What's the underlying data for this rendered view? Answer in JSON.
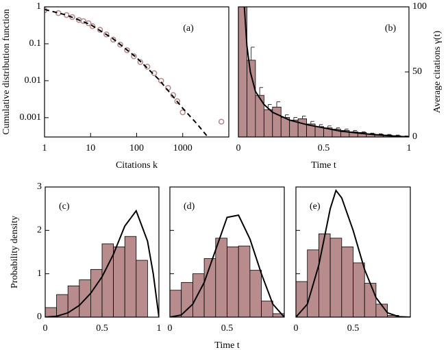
{
  "chart_data": [
    {
      "type": "scatter",
      "label": "(a)",
      "xlabel": "Citations k",
      "ylabel": "Cumulative distribution function",
      "log": true,
      "xlim": [
        1,
        10000
      ],
      "ylim": [
        0.0003,
        1
      ],
      "xticks": [
        1,
        10,
        100,
        1000
      ],
      "yticks": [
        0.001,
        0.01,
        0.1,
        1
      ],
      "series": [
        {
          "type": "scatter",
          "color": "#b88c8c",
          "x": [
            1,
            2,
            3,
            4,
            5.6,
            7,
            9,
            11,
            16,
            22,
            31,
            44,
            62,
            87,
            120,
            170,
            240,
            340,
            480,
            620,
            760,
            1000,
            6900
          ],
          "values": [
            0.81,
            0.68,
            0.6,
            0.53,
            0.44,
            0.41,
            0.36,
            0.3,
            0.24,
            0.18,
            0.13,
            0.095,
            0.067,
            0.046,
            0.032,
            0.024,
            0.016,
            0.01,
            0.0064,
            0.0041,
            0.0028,
            0.0014,
            0.00078
          ]
        },
        {
          "type": "line",
          "dash": true,
          "color": "#000000",
          "x": [
            1,
            3,
            10,
            30,
            100,
            300,
            1000,
            2000,
            3500
          ],
          "values": [
            0.85,
            0.6,
            0.33,
            0.14,
            0.042,
            0.011,
            0.0018,
            0.0007,
            0.0003
          ]
        }
      ]
    },
    {
      "type": "histogram",
      "label": "(b)",
      "xlabel": "Time t",
      "ylabel": "Average citations γ(t)",
      "yaxis": "right",
      "xlim": [
        0,
        1
      ],
      "ylim": [
        0,
        100
      ],
      "xticks": [
        0,
        0.5,
        1
      ],
      "yticks": [
        0,
        50,
        100
      ],
      "color": "#b88c8c",
      "bins": [
        0,
        0.05,
        0.1,
        0.15,
        0.2,
        0.25,
        0.3,
        0.35,
        0.4,
        0.45,
        0.5,
        0.55,
        0.6,
        0.65,
        0.7,
        0.75,
        0.8,
        0.85,
        0.9,
        0.95,
        1
      ],
      "values": [
        120,
        59,
        32,
        21,
        23,
        15,
        13,
        14,
        10,
        8,
        7,
        6,
        5,
        4,
        3.5,
        2.5,
        2,
        1.5,
        1,
        0.5
      ],
      "errors": [
        null,
        10,
        6,
        4,
        4,
        2,
        2,
        2,
        2,
        1.5,
        1.5,
        1,
        1,
        1,
        0.5,
        0.5,
        0.5,
        0.5,
        0.5,
        0.3
      ],
      "curve": {
        "color": "#000000",
        "x": [
          0.035,
          0.05,
          0.07,
          0.1,
          0.15,
          0.2,
          0.3,
          0.4,
          0.5,
          0.6,
          0.7,
          0.8,
          0.9,
          1
        ],
        "values": [
          100,
          70,
          50,
          35,
          25,
          19,
          13,
          9.5,
          7,
          4.5,
          3,
          1.8,
          0.8,
          0
        ]
      }
    },
    {
      "type": "histogram",
      "label": "(c)",
      "ylabel": "Probability density",
      "xlim": [
        0,
        1
      ],
      "ylim": [
        0,
        3
      ],
      "xticks": [
        0,
        0.5,
        1
      ],
      "yticks": [
        0,
        1,
        2,
        3
      ],
      "color": "#b88c8c",
      "bins": [
        0,
        0.1,
        0.2,
        0.3,
        0.4,
        0.5,
        0.6,
        0.7,
        0.8,
        0.9,
        1
      ],
      "values": [
        0.22,
        0.52,
        0.72,
        0.86,
        1.1,
        1.69,
        1.62,
        1.86,
        1.31,
        0
      ],
      "curve": {
        "color": "#000000",
        "x": [
          0,
          0.1,
          0.2,
          0.3,
          0.4,
          0.5,
          0.6,
          0.7,
          0.8,
          0.9,
          0.95,
          1
        ],
        "values": [
          0,
          0.02,
          0.1,
          0.27,
          0.55,
          0.93,
          1.45,
          2.1,
          2.45,
          1.75,
          1,
          0
        ]
      }
    },
    {
      "type": "histogram",
      "label": "(d)",
      "xlabel": "Time t",
      "show_ytick_labels": false,
      "xlim": [
        0,
        1
      ],
      "ylim": [
        0,
        3
      ],
      "xticks": [
        0,
        0.5
      ],
      "yticks": [
        0,
        1,
        2,
        3
      ],
      "color": "#b88c8c",
      "bins": [
        0,
        0.1,
        0.2,
        0.3,
        0.4,
        0.5,
        0.6,
        0.7,
        0.8,
        0.9,
        1
      ],
      "values": [
        0.62,
        0.8,
        1.0,
        1.35,
        1.82,
        1.62,
        1.64,
        1.08,
        0.37,
        0.08
      ],
      "curve": {
        "color": "#000000",
        "x": [
          0,
          0.1,
          0.2,
          0.3,
          0.4,
          0.5,
          0.6,
          0.7,
          0.8,
          0.9,
          1
        ],
        "values": [
          0,
          0.05,
          0.3,
          0.8,
          1.55,
          2.3,
          2.35,
          1.8,
          1,
          0.3,
          0
        ]
      }
    },
    {
      "type": "histogram",
      "label": "(e)",
      "show_ytick_labels": false,
      "xlim": [
        0,
        1
      ],
      "ylim": [
        0,
        3
      ],
      "xticks": [
        0,
        0.5
      ],
      "yticks": [
        0,
        1,
        2,
        3
      ],
      "color": "#b88c8c",
      "bins": [
        0,
        0.1,
        0.2,
        0.3,
        0.4,
        0.5,
        0.6,
        0.7,
        0.8,
        0.9,
        1
      ],
      "values": [
        0.82,
        1.55,
        1.92,
        1.82,
        1.62,
        1.25,
        0.78,
        0.3,
        0.04,
        0
      ],
      "curve": {
        "color": "#000000",
        "x": [
          0,
          0.1,
          0.2,
          0.3,
          0.35,
          0.4,
          0.5,
          0.6,
          0.7,
          0.8,
          0.9,
          1
        ],
        "values": [
          0,
          0.3,
          1.2,
          2.5,
          2.92,
          2.75,
          2.0,
          1.1,
          0.45,
          0.1,
          0.01,
          0
        ]
      }
    }
  ]
}
